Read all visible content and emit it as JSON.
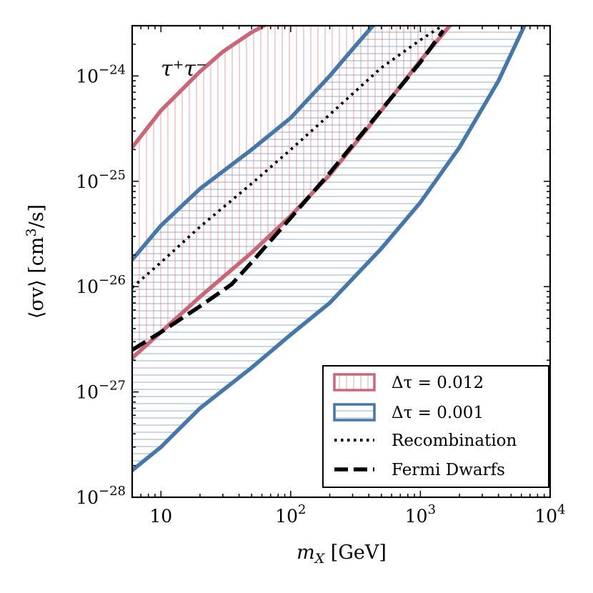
{
  "chart_data": {
    "type": "line",
    "annotation": "τ⁺τ⁻",
    "xlabel": {
      "main": "m",
      "sub": "X",
      "unit": " [GeV]"
    },
    "ylabel": {
      "main": "⟨σv⟩ [cm",
      "sup": "3",
      "tail": "/s]"
    },
    "x_scale": "log",
    "y_scale": "log",
    "xlim": [
      6,
      10000
    ],
    "ylim": [
      1e-28,
      3e-24
    ],
    "x_ticks": [
      {
        "value": 10,
        "base": "10",
        "exp": ""
      },
      {
        "value": 100,
        "base": "10",
        "exp": "2"
      },
      {
        "value": 1000,
        "base": "10",
        "exp": "3"
      },
      {
        "value": 10000,
        "base": "10",
        "exp": "4"
      }
    ],
    "y_ticks": [
      {
        "value": 1e-28,
        "base": "10",
        "exp": "−28"
      },
      {
        "value": 1e-27,
        "base": "10",
        "exp": "−27"
      },
      {
        "value": 1e-26,
        "base": "10",
        "exp": "−26"
      },
      {
        "value": 1e-25,
        "base": "10",
        "exp": "−25"
      },
      {
        "value": 1e-24,
        "base": "10",
        "exp": "−24"
      }
    ],
    "colors": {
      "red": "#cc6677",
      "blue": "#4477aa",
      "black": "#000000"
    },
    "series": [
      {
        "name": "Δτ = 0.012 upper",
        "color": "#cc6677",
        "style": "solid",
        "x": [
          6,
          10,
          20,
          30,
          50,
          75
        ],
        "y": [
          2.1e-25,
          4.7e-25,
          1.1e-24,
          1.7e-24,
          2.6e-24,
          3.4e-24
        ]
      },
      {
        "name": "Δτ = 0.012 lower",
        "color": "#cc6677",
        "style": "solid",
        "x": [
          6,
          10,
          20,
          50,
          100,
          200,
          400,
          1000,
          1800
        ],
        "y": [
          2.1e-27,
          3.7e-27,
          8e-27,
          2.1e-26,
          4.7e-26,
          1.15e-25,
          3.3e-25,
          1.4e-24,
          3.3e-24
        ]
      },
      {
        "name": "Δτ = 0.001 upper",
        "color": "#4477aa",
        "style": "solid",
        "x": [
          6,
          10,
          20,
          50,
          100,
          200,
          300,
          450
        ],
        "y": [
          1.8e-26,
          3.8e-26,
          8.5e-26,
          2e-25,
          4e-25,
          1e-24,
          1.8e-24,
          3.2e-24
        ]
      },
      {
        "name": "Δτ = 0.001 lower",
        "color": "#4477aa",
        "style": "solid",
        "x": [
          6,
          10,
          20,
          50,
          100,
          200,
          500,
          1000,
          2000,
          4000,
          6500
        ],
        "y": [
          1.8e-28,
          3e-28,
          7e-28,
          1.7e-27,
          3.5e-27,
          7e-27,
          2.3e-26,
          6.3e-26,
          2.1e-25,
          9e-25,
          3.2e-24
        ]
      },
      {
        "name": "Recombination",
        "color": "#000000",
        "style": "dotted",
        "x": [
          6,
          10,
          20,
          50,
          100,
          200,
          500,
          1000,
          1600
        ],
        "y": [
          9.8e-27,
          1.7e-26,
          3.7e-26,
          9.5e-26,
          2e-25,
          4.3e-25,
          1.2e-24,
          2.2e-24,
          3.2e-24
        ]
      },
      {
        "name": "Fermi Dwarfs",
        "color": "#000000",
        "style": "dashed",
        "x": [
          6,
          10,
          20,
          35,
          50,
          100,
          200,
          400,
          1000,
          1500
        ],
        "y": [
          2.5e-27,
          3.7e-27,
          6.5e-27,
          1.05e-26,
          1.7e-26,
          4.5e-26,
          1.2e-25,
          3.4e-25,
          1.35e-24,
          2.7e-24
        ]
      }
    ],
    "legend": {
      "position": "bottom-right",
      "entries": [
        {
          "label": "Δτ = 0.012",
          "kind": "patch-vertical",
          "color": "#cc6677"
        },
        {
          "label": "Δτ = 0.001",
          "kind": "patch-horizontal",
          "color": "#4477aa"
        },
        {
          "label": "Recombination",
          "kind": "dotted",
          "color": "#000000"
        },
        {
          "label": "Fermi Dwarfs",
          "kind": "dashed",
          "color": "#000000"
        }
      ]
    }
  }
}
